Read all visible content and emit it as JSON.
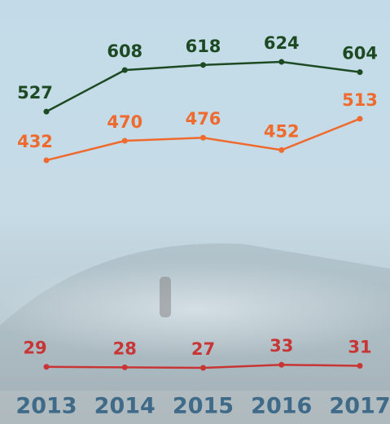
{
  "chart_data": {
    "type": "line",
    "categories": [
      "2013",
      "2014",
      "2015",
      "2016",
      "2017"
    ],
    "series": [
      {
        "color": "#1d4a22",
        "values": [
          527,
          608,
          618,
          624,
          604
        ]
      },
      {
        "color": "#ee6a2e",
        "values": [
          432,
          470,
          476,
          452,
          513
        ]
      },
      {
        "color": "#c83535",
        "values": [
          29,
          28,
          27,
          33,
          31
        ]
      }
    ],
    "ylim": [
      0,
      713
    ]
  }
}
